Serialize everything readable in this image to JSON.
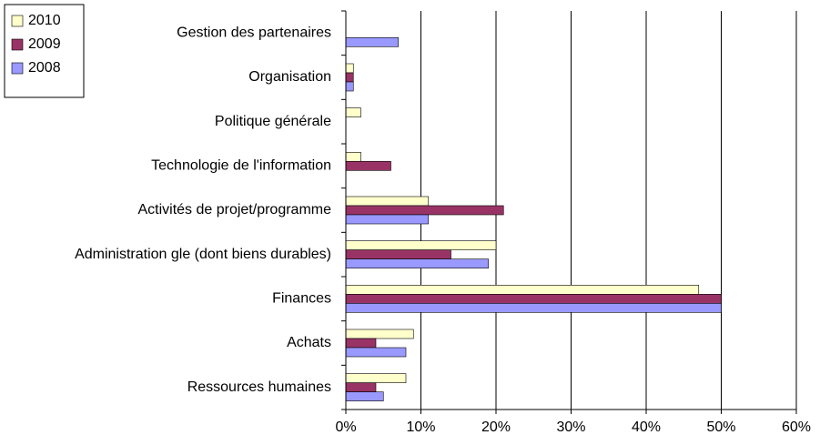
{
  "chart_data": {
    "type": "hbar",
    "categories": [
      "Gestion des partenaires",
      "Organisation",
      "Politique générale",
      "Technologie de l'information",
      "Activités de projet/programme",
      "Administration gle (dont biens durables)",
      "Finances",
      "Achats",
      "Ressources humaines"
    ],
    "series": [
      {
        "name": "2010",
        "color": "#ffffcc",
        "values": [
          0,
          1,
          2,
          2,
          11,
          20,
          47,
          9,
          8
        ]
      },
      {
        "name": "2009",
        "color": "#993366",
        "values": [
          0,
          1,
          0,
          6,
          21,
          14,
          50,
          4,
          4
        ]
      },
      {
        "name": "2008",
        "color": "#9999ff",
        "values": [
          7,
          1,
          0,
          0,
          11,
          19,
          50,
          8,
          5
        ]
      }
    ],
    "xlim": [
      0,
      60
    ],
    "xticks": [
      {
        "value": 0,
        "label": "0%"
      },
      {
        "value": 10,
        "label": "10%"
      },
      {
        "value": 20,
        "label": "20%"
      },
      {
        "value": 30,
        "label": "30%"
      },
      {
        "value": 40,
        "label": "40%"
      },
      {
        "value": 50,
        "label": "50%"
      },
      {
        "value": 60,
        "label": "60%"
      }
    ],
    "grid": true,
    "legend": "top-left"
  }
}
